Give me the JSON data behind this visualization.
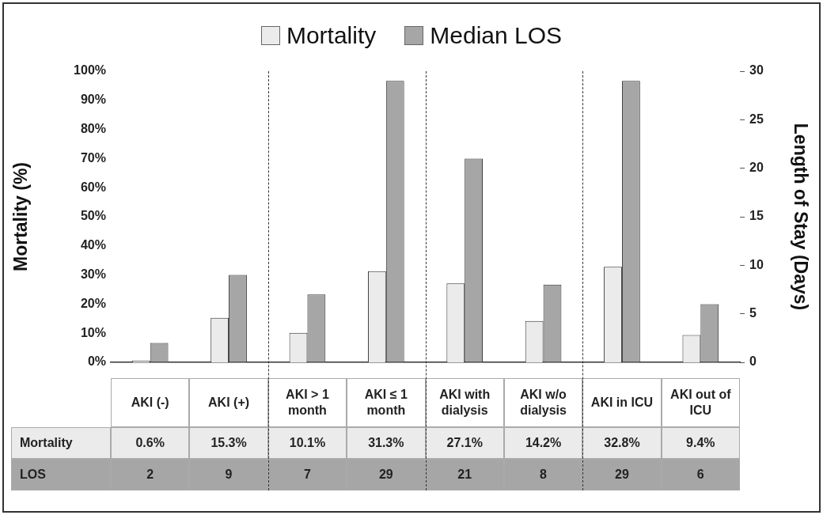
{
  "chart_data": {
    "type": "bar",
    "ylabel": "Mortality (%)",
    "y2label": "Length of Stay (Days)",
    "categories": [
      "AKI (-)",
      "AKI (+)",
      "AKI > 1 month",
      "AKI ≤ 1 month",
      "AKI with dialysis",
      "AKI w/o dialysis",
      "AKI in ICU",
      "AKI out of ICU"
    ],
    "series": [
      {
        "name": "Mortality",
        "color": "#ebebeb",
        "values": [
          0.6,
          15.3,
          10.1,
          31.3,
          27.1,
          14.2,
          32.8,
          9.4
        ],
        "value_labels": [
          "0.6%",
          "15.3%",
          "10.1%",
          "31.3%",
          "27.1%",
          "14.2%",
          "32.8%",
          "9.4%"
        ]
      },
      {
        "name": "Median LOS",
        "color": "#a6a6a6",
        "axis": "y2",
        "values": [
          2,
          9,
          7,
          29,
          21,
          8,
          29,
          6
        ],
        "value_labels": [
          "2",
          "9",
          "7",
          "29",
          "21",
          "8",
          "29",
          "6"
        ]
      }
    ],
    "ylim": [
      0,
      100
    ],
    "yticks": [
      {
        "value": 0,
        "label": "0%"
      },
      {
        "value": 10,
        "label": "10%"
      },
      {
        "value": 20,
        "label": "20%"
      },
      {
        "value": 30,
        "label": "30%"
      },
      {
        "value": 40,
        "label": "40%"
      },
      {
        "value": 50,
        "label": "50%"
      },
      {
        "value": 60,
        "label": "60%"
      },
      {
        "value": 70,
        "label": "70%"
      },
      {
        "value": 80,
        "label": "80%"
      },
      {
        "value": 90,
        "label": "90%"
      },
      {
        "value": 100,
        "label": "100%"
      }
    ],
    "y2lim": [
      0,
      30
    ],
    "y2ticks": [
      0,
      5,
      10,
      15,
      20,
      25,
      30
    ],
    "legend": "top",
    "annotations": [
      "Mortality",
      "LOS"
    ]
  }
}
